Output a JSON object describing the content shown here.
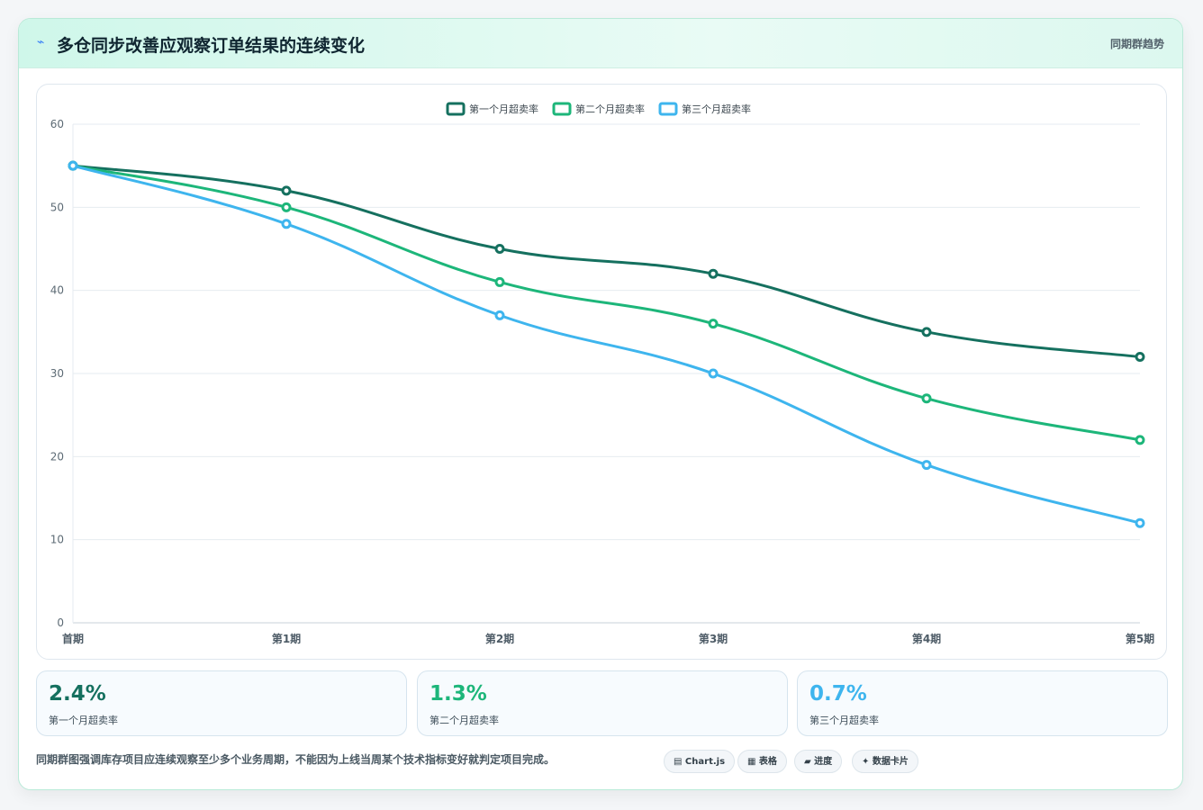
{
  "header": {
    "icon": "bolt-icon",
    "title": "多仓同步改善应观察订单结果的连续变化",
    "tag": "同期群趋势"
  },
  "chart_data": {
    "type": "line",
    "categories": [
      "首期",
      "第1期",
      "第2期",
      "第3期",
      "第4期",
      "第5期"
    ],
    "series": [
      {
        "name": "第一个月超卖率",
        "color": "#15705f",
        "values": [
          55,
          52,
          45,
          42,
          35,
          32
        ]
      },
      {
        "name": "第二个月超卖率",
        "color": "#1db67a",
        "values": [
          55,
          50,
          41,
          36,
          27,
          22
        ]
      },
      {
        "name": "第三个月超卖率",
        "color": "#3eb5ee",
        "values": [
          55,
          48,
          37,
          30,
          19,
          12
        ]
      }
    ],
    "ylim": [
      0,
      60
    ],
    "yticks": [
      0,
      10,
      20,
      30,
      40,
      50,
      60
    ],
    "grid": true,
    "legend": "top-center"
  },
  "stats": [
    {
      "value": "2.4%",
      "label": "第一个月超卖率",
      "color": "#15705f"
    },
    {
      "value": "1.3%",
      "label": "第二个月超卖率",
      "color": "#1db67a"
    },
    {
      "value": "0.7%",
      "label": "第三个月超卖率",
      "color": "#3eb5ee"
    }
  ],
  "footnote": "同期群图强调库存项目应连续观察至少多个业务周期，不能因为上线当周某个技术指标变好就判定项目完成。",
  "chips": [
    {
      "label": "▤ Chart.js",
      "icon": "chart-icon"
    },
    {
      "label": "▦ 表格",
      "icon": "table-icon"
    },
    {
      "label": "▰ 进度",
      "icon": "progress-icon"
    },
    {
      "label": "✦ 数据卡片",
      "icon": "sparkle-icon"
    }
  ]
}
